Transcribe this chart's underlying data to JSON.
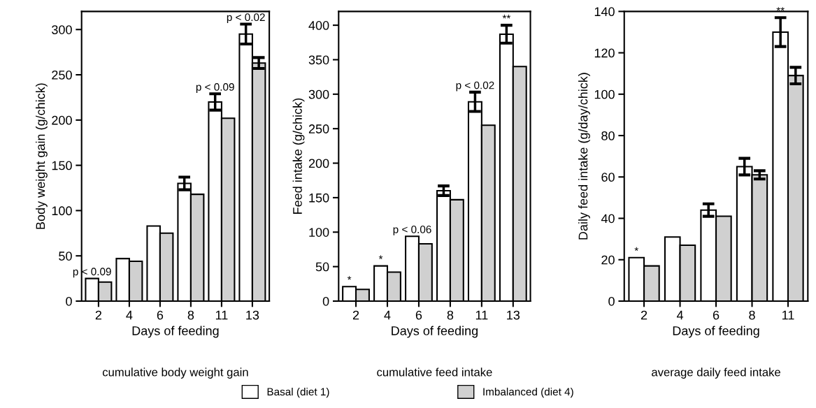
{
  "chart_data": [
    {
      "type": "bar",
      "xlabel": "Days of feeding",
      "ylabel": "Body weight gain (g/chick)",
      "categories": [
        "2",
        "4",
        "6",
        "8",
        "11",
        "13"
      ],
      "ylim": [
        0,
        320
      ],
      "yticks": [
        0,
        50,
        100,
        150,
        200,
        250,
        300
      ],
      "grid": false,
      "legend": "bottom",
      "series": [
        {
          "name": "Basal (diet 1)",
          "color": "#ffffff",
          "values": [
            25,
            47,
            83,
            130,
            220,
            295
          ],
          "errors": [
            null,
            null,
            null,
            7,
            9,
            11
          ]
        },
        {
          "name": "Imbalanced (diet 4)",
          "color": "#d0d0d0",
          "values": [
            21,
            44,
            75,
            118,
            202,
            263
          ],
          "errors": [
            null,
            null,
            null,
            null,
            null,
            6
          ]
        }
      ],
      "annotations": [
        {
          "text": "p < 0.09",
          "x": "2",
          "y": 25
        },
        {
          "text": "p < 0.09",
          "x": "11",
          "y": 220
        },
        {
          "text": "p < 0.02",
          "x": "13",
          "y": 295
        },
        "cumulative body weight gain"
      ]
    },
    {
      "type": "bar",
      "xlabel": "Days of feeding",
      "ylabel": "Feed intake (g/chick)",
      "categories": [
        "2",
        "4",
        "6",
        "8",
        "11",
        "13"
      ],
      "ylim": [
        0,
        420
      ],
      "yticks": [
        0,
        50,
        100,
        150,
        200,
        250,
        300,
        350,
        400
      ],
      "grid": false,
      "series": [
        {
          "color": "#ffffff",
          "values": [
            21,
            51,
            94,
            160,
            289,
            387
          ],
          "errors": [
            null,
            null,
            null,
            7,
            14,
            13
          ]
        },
        {
          "color": "#d0d0d0",
          "values": [
            17,
            42,
            83,
            147,
            255,
            340
          ]
        }
      ],
      "annotations": [
        {
          "text": "*",
          "x": "2",
          "y": 21
        },
        {
          "text": "*",
          "x": "4",
          "y": 51
        },
        {
          "text": "p < 0.06",
          "x": "6",
          "y": 94
        },
        {
          "text": "p < 0.02",
          "x": "11",
          "y": 289
        },
        {
          "text": "**",
          "x": "13",
          "y": 387
        },
        "cumulative feed intake"
      ]
    },
    {
      "type": "bar",
      "xlabel": "Days of feeding",
      "ylabel": "Daily feed intake (g/day/chick)",
      "categories": [
        "2",
        "4",
        "6",
        "8",
        "11"
      ],
      "ylim": [
        0,
        140
      ],
      "yticks": [
        0,
        20,
        40,
        60,
        80,
        100,
        120,
        140
      ],
      "grid": false,
      "series": [
        {
          "color": "#ffffff",
          "values": [
            21,
            31,
            44,
            65,
            130
          ],
          "errors": [
            null,
            null,
            3,
            4,
            7
          ]
        },
        {
          "color": "#d0d0d0",
          "values": [
            17,
            27,
            41,
            61,
            109
          ],
          "errors": [
            null,
            null,
            null,
            2,
            4
          ]
        }
      ],
      "annotations": [
        {
          "text": "*",
          "x": "2",
          "y": 21
        },
        {
          "text": "**",
          "x": "11",
          "y": 130
        },
        "average daily feed intake"
      ]
    }
  ]
}
